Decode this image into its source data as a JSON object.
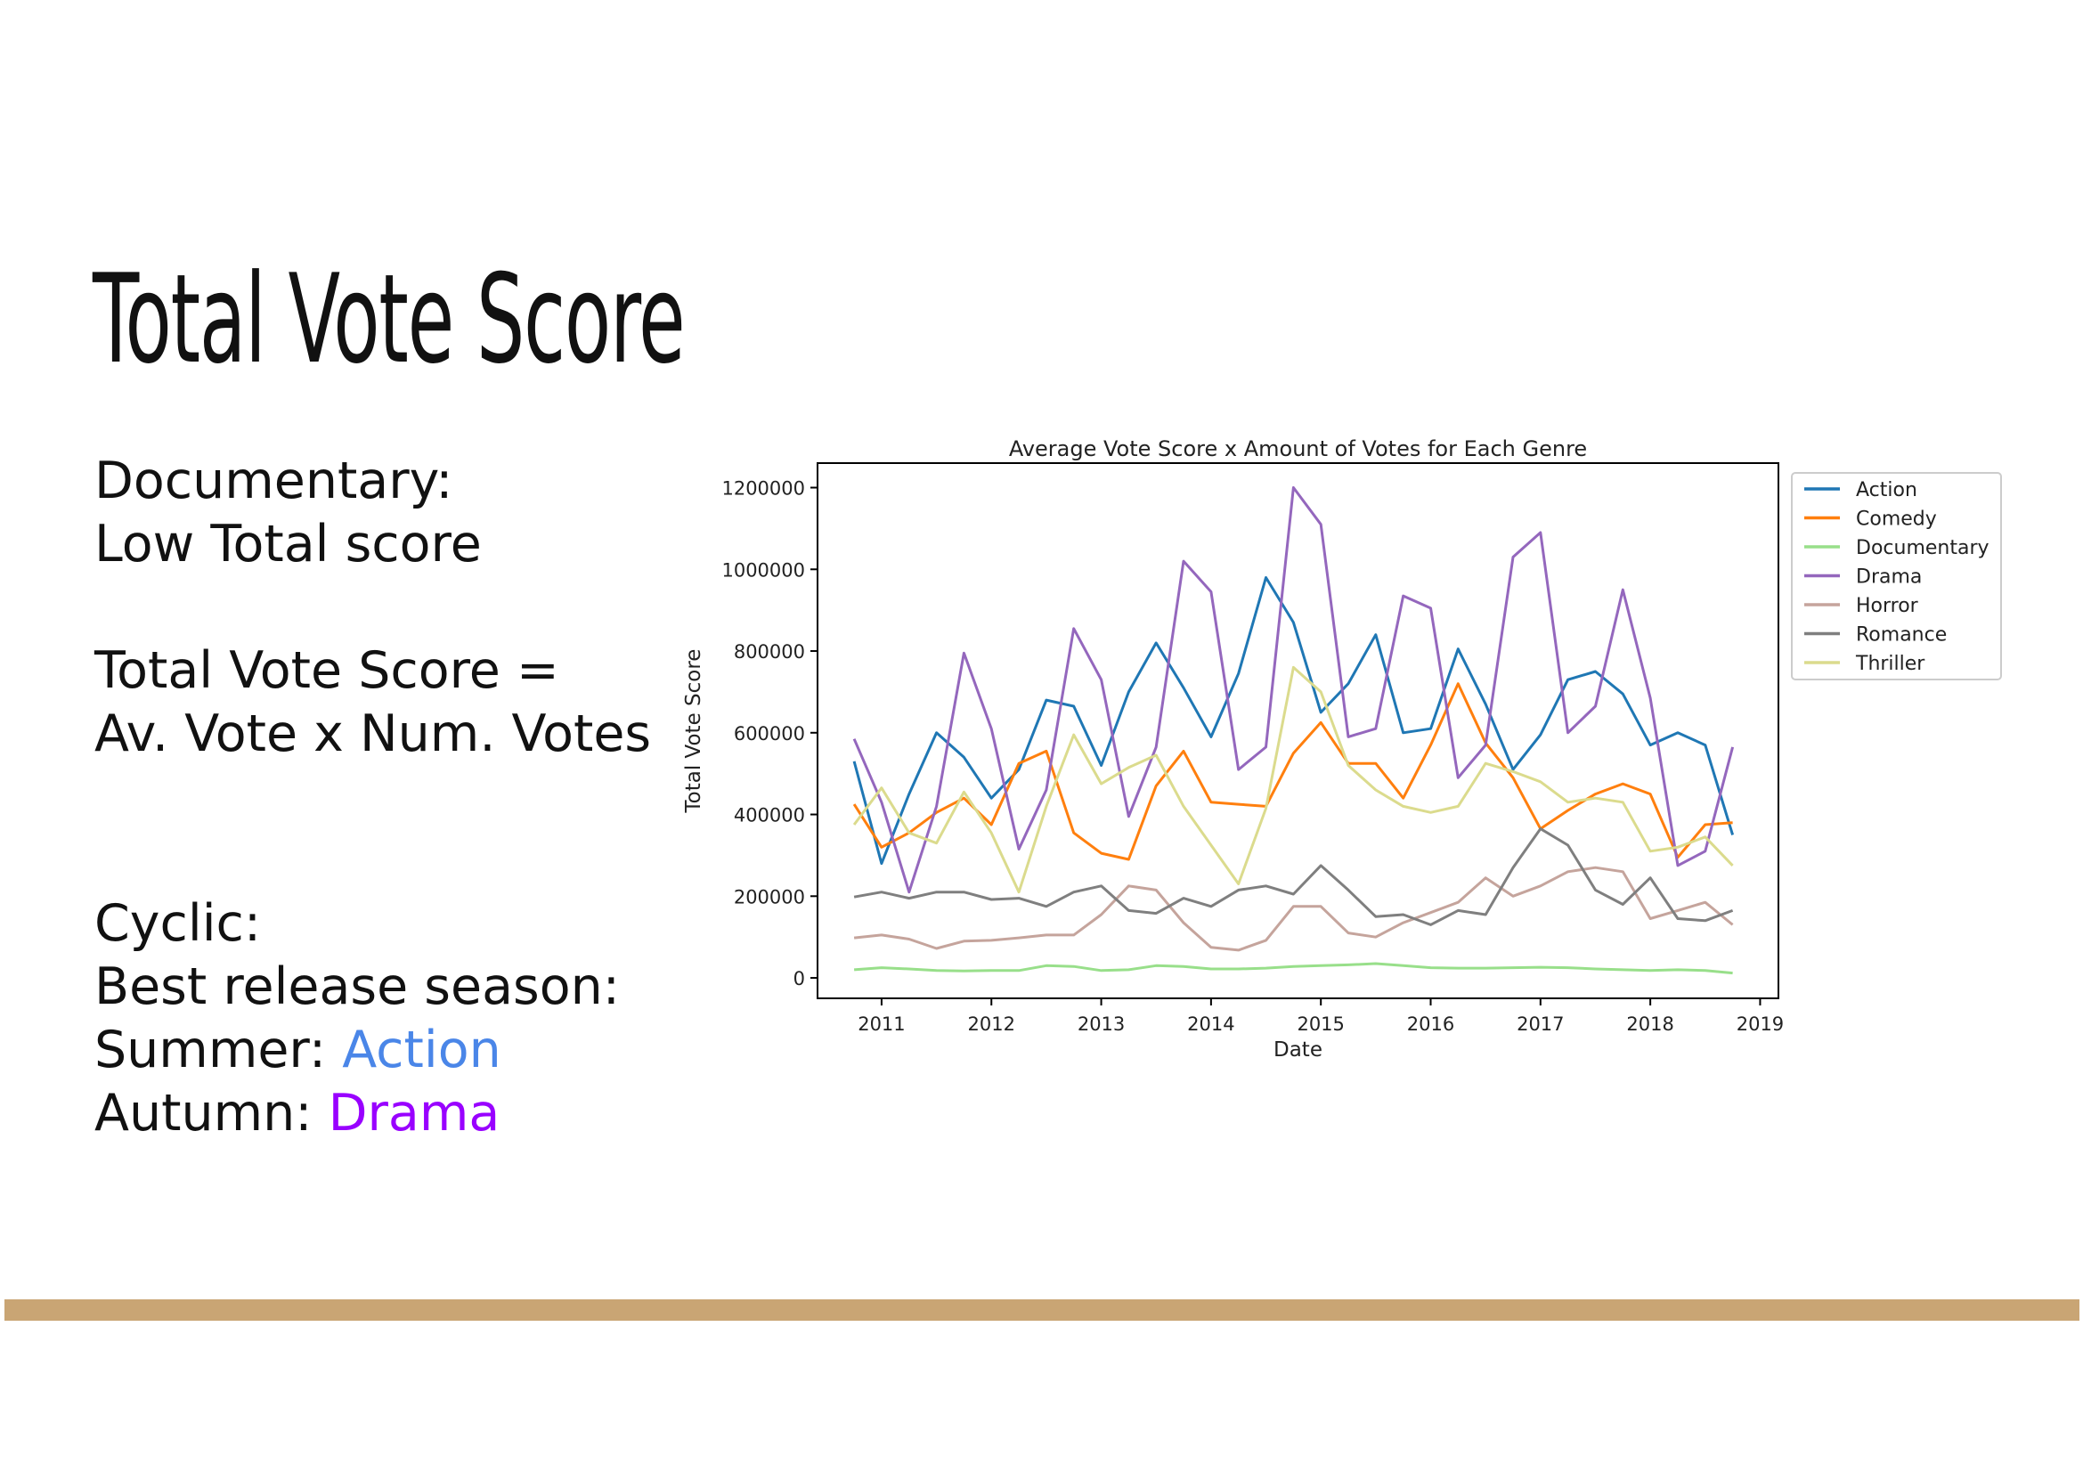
{
  "slide": {
    "title": "Total Vote Score",
    "notes": {
      "documentary_label": "Documentary:",
      "documentary_text": "Low Total score",
      "formula_line1": "Total Vote Score =",
      "formula_line2": "Av. Vote x Num. Votes",
      "cyclic_label": "Cyclic:",
      "best_season": "Best release season:",
      "summer_label": "Summer: ",
      "summer_genre": "Action",
      "autumn_label": "Autumn: ",
      "autumn_genre": "Drama"
    },
    "colors": {
      "summer_genre": "#4a86e8",
      "autumn_genre": "#9900ff",
      "bottom_bar": "#c9a574"
    }
  },
  "chart_data": {
    "type": "line",
    "title": "Average Vote Score x Amount of Votes for Each Genre",
    "xlabel": "Date",
    "ylabel": "Total Vote Score",
    "xlim": [
      "2010-06",
      "2019-03"
    ],
    "ylim": [
      -50000,
      1260000
    ],
    "x_ticks": [
      "2011",
      "2012",
      "2013",
      "2014",
      "2015",
      "2016",
      "2017",
      "2018",
      "2019"
    ],
    "y_ticks": [
      0,
      200000,
      400000,
      600000,
      800000,
      1000000,
      1200000
    ],
    "y_tick_labels": [
      "0",
      "200000",
      "400000",
      "600000",
      "800000",
      "1000000",
      "1200000"
    ],
    "legend_position": "outside-right-top",
    "x": [
      "2010-10",
      "2011-01",
      "2011-04",
      "2011-07",
      "2011-10",
      "2012-01",
      "2012-04",
      "2012-07",
      "2012-10",
      "2013-01",
      "2013-04",
      "2013-07",
      "2013-10",
      "2014-01",
      "2014-04",
      "2014-07",
      "2014-10",
      "2015-01",
      "2015-04",
      "2015-07",
      "2015-10",
      "2016-01",
      "2016-04",
      "2016-07",
      "2016-10",
      "2017-01",
      "2017-04",
      "2017-07",
      "2017-10",
      "2018-01",
      "2018-04",
      "2018-07",
      "2018-10"
    ],
    "series": [
      {
        "name": "Action",
        "color": "#1f77b4",
        "values": [
          530000,
          280000,
          450000,
          600000,
          540000,
          440000,
          510000,
          680000,
          665000,
          520000,
          700000,
          820000,
          710000,
          590000,
          745000,
          980000,
          870000,
          650000,
          720000,
          840000,
          600000,
          610000,
          805000,
          670000,
          510000,
          595000,
          730000,
          750000,
          695000,
          570000,
          600000,
          570000,
          350000
        ]
      },
      {
        "name": "Comedy",
        "color": "#ff7f0e",
        "values": [
          425000,
          320000,
          355000,
          405000,
          440000,
          375000,
          525000,
          555000,
          355000,
          305000,
          290000,
          470000,
          555000,
          430000,
          425000,
          420000,
          550000,
          625000,
          525000,
          525000,
          440000,
          570000,
          720000,
          575000,
          490000,
          365000,
          410000,
          450000,
          475000,
          450000,
          295000,
          375000,
          380000
        ]
      },
      {
        "name": "Documentary",
        "color": "#98df8a",
        "values": [
          20000,
          25000,
          22000,
          18000,
          17000,
          18000,
          18000,
          30000,
          28000,
          18000,
          20000,
          30000,
          28000,
          22000,
          22000,
          24000,
          28000,
          30000,
          32000,
          35000,
          30000,
          25000,
          24000,
          24000,
          25000,
          26000,
          25000,
          22000,
          20000,
          18000,
          20000,
          18000,
          12000
        ]
      },
      {
        "name": "Drama",
        "color": "#9467bd",
        "values": [
          585000,
          430000,
          210000,
          420000,
          795000,
          610000,
          315000,
          460000,
          855000,
          730000,
          395000,
          565000,
          1020000,
          945000,
          510000,
          565000,
          1200000,
          1110000,
          590000,
          610000,
          935000,
          905000,
          490000,
          570000,
          1030000,
          1090000,
          600000,
          665000,
          950000,
          685000,
          275000,
          310000,
          565000
        ]
      },
      {
        "name": "Horror",
        "color": "#c5a49c",
        "values": [
          98000,
          105000,
          95000,
          72000,
          90000,
          92000,
          98000,
          105000,
          105000,
          155000,
          225000,
          215000,
          135000,
          75000,
          68000,
          92000,
          175000,
          175000,
          110000,
          100000,
          135000,
          160000,
          185000,
          245000,
          200000,
          225000,
          260000,
          270000,
          260000,
          145000,
          165000,
          185000,
          130000
        ]
      },
      {
        "name": "Romance",
        "color": "#7f7f7f",
        "values": [
          198000,
          210000,
          195000,
          210000,
          210000,
          192000,
          195000,
          175000,
          210000,
          225000,
          165000,
          158000,
          195000,
          175000,
          215000,
          225000,
          205000,
          275000,
          215000,
          150000,
          155000,
          130000,
          165000,
          155000,
          270000,
          365000,
          325000,
          215000,
          180000,
          245000,
          145000,
          140000,
          165000
        ]
      },
      {
        "name": "Thriller",
        "color": "#dbdb8d",
        "values": [
          375000,
          465000,
          355000,
          330000,
          455000,
          355000,
          210000,
          420000,
          595000,
          475000,
          515000,
          545000,
          420000,
          325000,
          230000,
          415000,
          760000,
          700000,
          520000,
          460000,
          420000,
          405000,
          420000,
          525000,
          505000,
          480000,
          430000,
          440000,
          430000,
          310000,
          320000,
          345000,
          275000
        ]
      }
    ]
  }
}
